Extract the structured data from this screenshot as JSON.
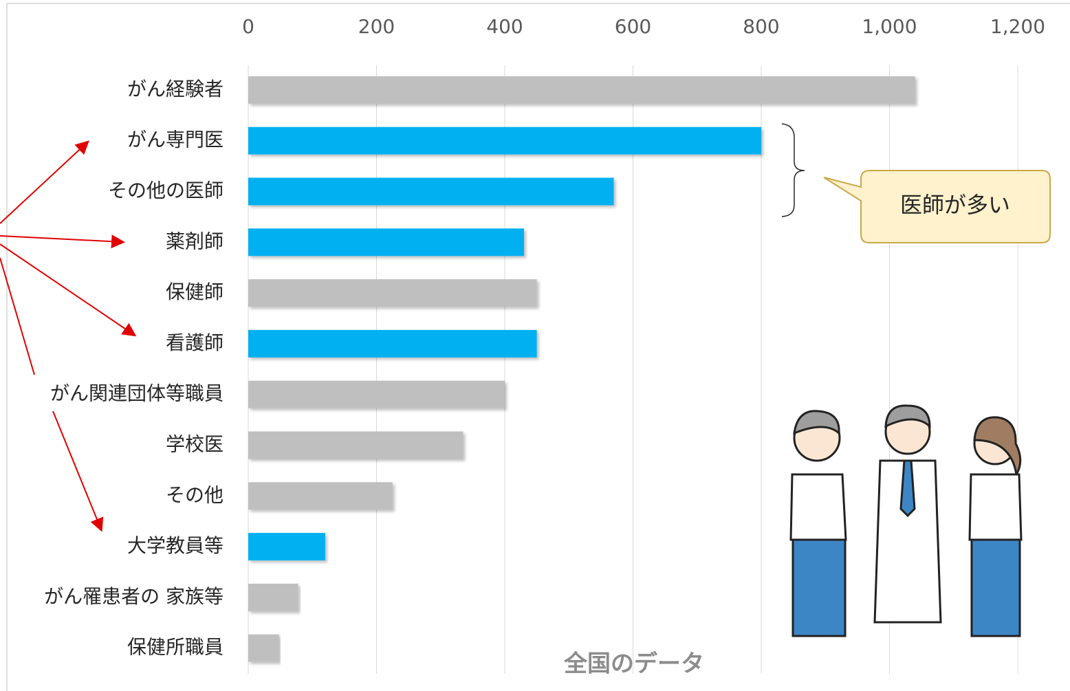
{
  "chart_data": {
    "type": "bar",
    "orientation": "horizontal",
    "categories": [
      "がん経験者",
      "がん専門医",
      "その他の医師",
      "薬剤師",
      "保健師",
      "看護師",
      "がん関連団体等職員",
      "学校医",
      "その他",
      "大学教員等",
      "がん罹患者の 家族等",
      "保健所職員"
    ],
    "values": [
      1040,
      800,
      570,
      430,
      450,
      450,
      400,
      335,
      225,
      120,
      78,
      48
    ],
    "colors": [
      "#bfbfbf",
      "#00b0f0",
      "#00b0f0",
      "#00b0f0",
      "#bfbfbf",
      "#00b0f0",
      "#bfbfbf",
      "#bfbfbf",
      "#bfbfbf",
      "#00b0f0",
      "#bfbfbf",
      "#bfbfbf"
    ],
    "xlim": [
      0,
      1200
    ],
    "xticks": [
      0,
      200,
      400,
      600,
      800,
      {
        "value": 1000,
        "label": "1,000"
      },
      {
        "value": 1200,
        "label": "1,200"
      }
    ],
    "grid": true,
    "annotations": [
      "医師が多い",
      "全国のデータ"
    ]
  }
}
